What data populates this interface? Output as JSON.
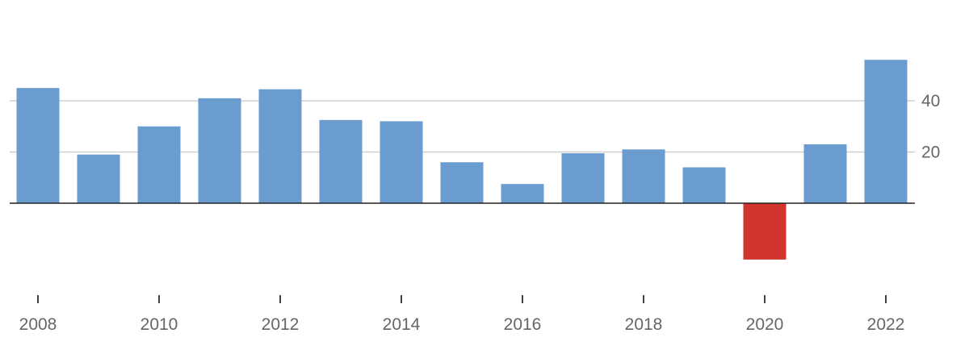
{
  "chart_data": {
    "type": "bar",
    "categories": [
      "2008",
      "2009",
      "2010",
      "2011",
      "2012",
      "2013",
      "2014",
      "2015",
      "2016",
      "2017",
      "2018",
      "2019",
      "2020",
      "2021",
      "2022"
    ],
    "values": [
      45,
      19,
      30,
      41,
      44.5,
      32.5,
      32,
      16,
      7.5,
      19.5,
      21,
      14,
      -22,
      23,
      56
    ],
    "xlabel": "",
    "ylabel": "",
    "ylim": [
      -35,
      62
    ],
    "yticks": [
      20,
      40
    ],
    "ytick_labels": [
      "20",
      "40"
    ],
    "xtick_labels": [
      "2008",
      "2010",
      "2012",
      "2014",
      "2016",
      "2018",
      "2020",
      "2022"
    ],
    "grid": true,
    "yaxis_side": "right",
    "colors": {
      "positive": "#6a9cd0",
      "negative": "#d0342c",
      "grid": "#c8c8c8",
      "baseline": "#222222",
      "tick": "#444444"
    }
  }
}
